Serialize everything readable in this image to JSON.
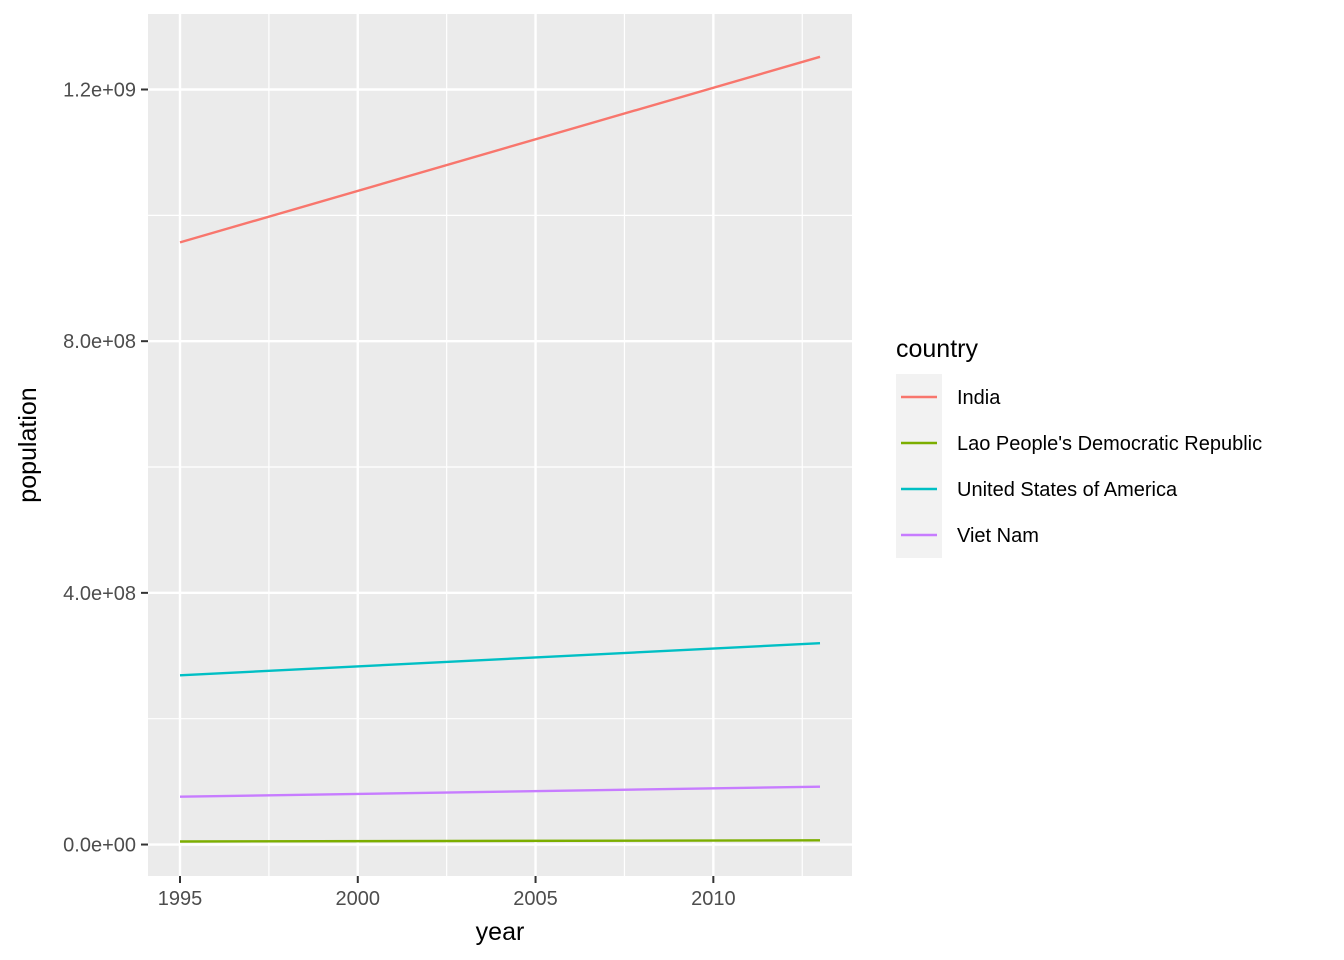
{
  "chart_data": {
    "type": "line",
    "title": "",
    "xlabel": "year",
    "ylabel": "population",
    "xlim": [
      1994.1,
      2013.9
    ],
    "ylim": [
      -50000000,
      1320000000
    ],
    "x_ticks": [
      1995,
      2000,
      2005,
      2010
    ],
    "x_tick_labels": [
      "1995",
      "2000",
      "2005",
      "2010"
    ],
    "y_ticks": [
      0,
      400000000,
      800000000,
      1200000000
    ],
    "y_tick_labels": [
      "0.0e+00",
      "4.0e+08",
      "8.0e+08",
      "1.2e+09"
    ],
    "grid": true,
    "background_color": "#ebebeb",
    "legend": {
      "title": "country",
      "position": "right"
    },
    "x": [
      1995,
      2013
    ],
    "series": [
      {
        "name": "India",
        "color": "#f8766d",
        "values": [
          957000000,
          1252000000
        ]
      },
      {
        "name": "Lao People's Democratic Republic",
        "color": "#7cae00",
        "values": [
          4900000,
          6770000
        ]
      },
      {
        "name": "United States of America",
        "color": "#00bfc4",
        "values": [
          269000000,
          320000000
        ]
      },
      {
        "name": "Viet Nam",
        "color": "#c77cff",
        "values": [
          76000000,
          92000000
        ]
      }
    ]
  }
}
